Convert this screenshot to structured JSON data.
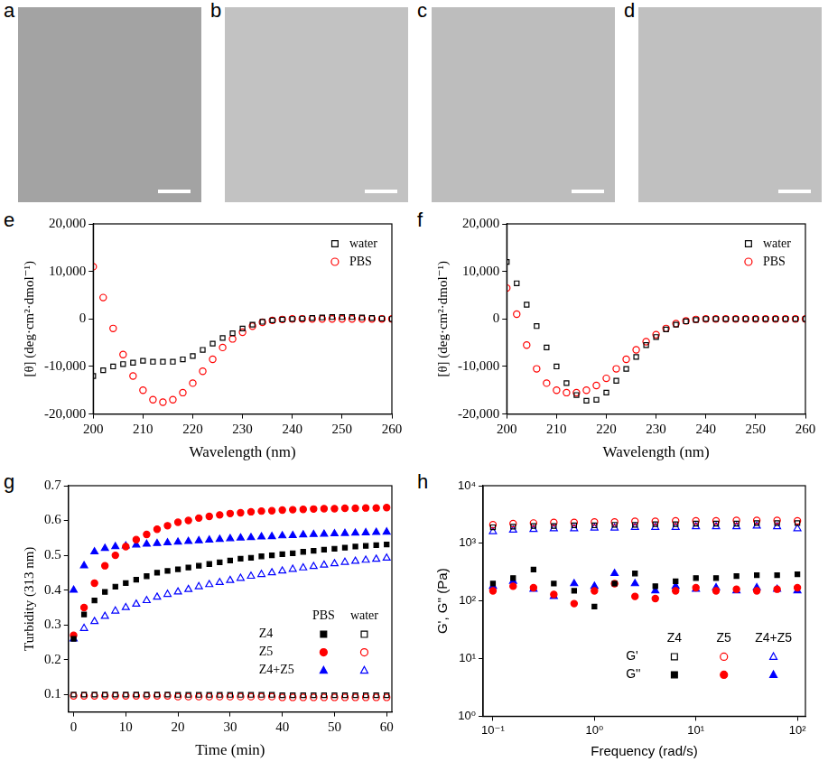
{
  "image_panels": [
    {
      "panel": "a"
    },
    {
      "panel": "b"
    },
    {
      "panel": "c"
    },
    {
      "panel": "d"
    }
  ],
  "chart_data": [
    {
      "panel": "e",
      "type": "scatter",
      "x_label": "Wavelength (nm)",
      "y_label": "[θ] (deg·cm²·dmol⁻¹)",
      "x": [
        200,
        202,
        204,
        206,
        208,
        210,
        212,
        214,
        216,
        218,
        220,
        222,
        224,
        226,
        228,
        230,
        232,
        234,
        236,
        238,
        240,
        242,
        244,
        246,
        248,
        250,
        252,
        254,
        256,
        258,
        260
      ],
      "xlim": [
        200,
        260
      ],
      "xticks": [
        200,
        210,
        220,
        230,
        240,
        250,
        260
      ],
      "ylim": [
        -20000,
        20000
      ],
      "yticks": [
        {
          "value": -20000,
          "label": "-20,000"
        },
        {
          "value": -10000,
          "label": "-10,000"
        },
        0,
        {
          "value": 10000,
          "label": "10,000"
        },
        {
          "value": 20000,
          "label": "20,000"
        }
      ],
      "grid": false,
      "legend": "upper right",
      "series": [
        {
          "name": "water",
          "color": "#000000",
          "marker": "square-open",
          "values": [
            -12000,
            -10800,
            -10000,
            -9500,
            -9200,
            -8800,
            -9000,
            -9000,
            -9000,
            -8500,
            -7800,
            -6500,
            -5200,
            -4000,
            -3000,
            -2000,
            -1200,
            -600,
            -300,
            -100,
            0,
            100,
            200,
            300,
            400,
            400,
            400,
            300,
            200,
            100,
            0
          ]
        },
        {
          "name": "PBS",
          "color": "#ff0000",
          "marker": "circle-open",
          "values": [
            11000,
            4500,
            -2000,
            -7500,
            -12000,
            -15000,
            -17000,
            -17500,
            -17000,
            -15500,
            -13500,
            -11000,
            -8500,
            -6000,
            -4200,
            -2800,
            -1500,
            -700,
            -300,
            -100,
            0,
            0,
            0,
            0,
            0,
            0,
            0,
            0,
            0,
            0,
            0
          ]
        }
      ]
    },
    {
      "panel": "f",
      "type": "scatter",
      "x_label": "Wavelength (nm)",
      "y_label": "[θ] (deg·cm²·dmol⁻¹)",
      "x": [
        200,
        202,
        204,
        206,
        208,
        210,
        212,
        214,
        216,
        218,
        220,
        222,
        224,
        226,
        228,
        230,
        232,
        234,
        236,
        238,
        240,
        242,
        244,
        246,
        248,
        250,
        252,
        254,
        256,
        258,
        260
      ],
      "xlim": [
        200,
        260
      ],
      "xticks": [
        200,
        210,
        220,
        230,
        240,
        250,
        260
      ],
      "ylim": [
        -20000,
        20000
      ],
      "yticks": [
        {
          "value": -20000,
          "label": "-20,000"
        },
        {
          "value": -10000,
          "label": "-10,000"
        },
        0,
        {
          "value": 10000,
          "label": "10,000"
        },
        {
          "value": 20000,
          "label": "20,000"
        }
      ],
      "grid": false,
      "legend": "upper right",
      "series": [
        {
          "name": "water",
          "color": "#000000",
          "marker": "square-open",
          "values": [
            12000,
            7500,
            3000,
            -1500,
            -6000,
            -10000,
            -13500,
            -16000,
            -17200,
            -17000,
            -15500,
            -13000,
            -10500,
            -8000,
            -5500,
            -3800,
            -2200,
            -1200,
            -500,
            -200,
            0,
            0,
            0,
            0,
            0,
            0,
            0,
            0,
            0,
            0,
            0
          ]
        },
        {
          "name": "PBS",
          "color": "#ff0000",
          "marker": "circle-open",
          "values": [
            6500,
            1000,
            -5500,
            -10500,
            -13500,
            -15000,
            -15500,
            -15500,
            -15000,
            -14000,
            -12500,
            -10500,
            -8500,
            -6500,
            -4800,
            -3300,
            -2000,
            -1000,
            -400,
            -100,
            0,
            0,
            0,
            0,
            0,
            0,
            0,
            0,
            0,
            0,
            0
          ]
        }
      ]
    },
    {
      "panel": "g",
      "type": "scatter",
      "x_label": "Time (min)",
      "y_label": "Turbidity (313 nm)",
      "x": [
        0,
        2,
        4,
        6,
        8,
        10,
        12,
        14,
        16,
        18,
        20,
        22,
        24,
        26,
        28,
        30,
        32,
        34,
        36,
        38,
        40,
        42,
        44,
        46,
        48,
        50,
        52,
        54,
        56,
        58,
        60
      ],
      "xlim": [
        -1,
        61
      ],
      "xticks": [
        0,
        10,
        20,
        30,
        40,
        50,
        60
      ],
      "ylim": [
        0.05,
        0.7
      ],
      "yticks": [
        0.1,
        0.2,
        0.3,
        0.4,
        0.5,
        0.6,
        0.7
      ],
      "grid": false,
      "legend": "lower right",
      "series": [
        {
          "name": "Z4",
          "group": "PBS",
          "color": "#000000",
          "marker": "square",
          "values": [
            0.26,
            0.33,
            0.37,
            0.395,
            0.41,
            0.42,
            0.43,
            0.44,
            0.45,
            0.455,
            0.46,
            0.465,
            0.47,
            0.475,
            0.48,
            0.485,
            0.49,
            0.493,
            0.497,
            0.5,
            0.503,
            0.506,
            0.51,
            0.513,
            0.516,
            0.519,
            0.522,
            0.525,
            0.527,
            0.529,
            0.531
          ]
        },
        {
          "name": "Z5",
          "group": "PBS",
          "color": "#ff0000",
          "marker": "circle",
          "values": [
            0.27,
            0.35,
            0.42,
            0.47,
            0.5,
            0.525,
            0.545,
            0.56,
            0.575,
            0.585,
            0.595,
            0.6,
            0.607,
            0.612,
            0.616,
            0.62,
            0.622,
            0.625,
            0.627,
            0.628,
            0.63,
            0.631,
            0.632,
            0.633,
            0.634,
            0.634,
            0.635,
            0.635,
            0.636,
            0.636,
            0.637
          ]
        },
        {
          "name": "Z4+Z5",
          "group": "PBS",
          "color": "#0000ff",
          "marker": "triangle",
          "values": [
            0.4,
            0.47,
            0.51,
            0.52,
            0.525,
            0.527,
            0.53,
            0.532,
            0.534,
            0.536,
            0.538,
            0.54,
            0.542,
            0.544,
            0.546,
            0.548,
            0.55,
            0.551,
            0.553,
            0.554,
            0.556,
            0.557,
            0.559,
            0.56,
            0.561,
            0.562,
            0.563,
            0.564,
            0.565,
            0.566,
            0.567
          ]
        },
        {
          "name": "Z4",
          "group": "water",
          "color": "#000000",
          "marker": "square-open",
          "values": [
            0.1,
            0.1,
            0.1,
            0.1,
            0.1,
            0.1,
            0.1,
            0.1,
            0.1,
            0.1,
            0.099,
            0.099,
            0.099,
            0.099,
            0.099,
            0.099,
            0.099,
            0.099,
            0.099,
            0.099,
            0.098,
            0.098,
            0.098,
            0.098,
            0.098,
            0.098,
            0.098,
            0.098,
            0.098,
            0.098,
            0.098
          ]
        },
        {
          "name": "Z5",
          "group": "water",
          "color": "#ff0000",
          "marker": "circle-open",
          "values": [
            0.096,
            0.096,
            0.096,
            0.096,
            0.096,
            0.096,
            0.096,
            0.096,
            0.096,
            0.096,
            0.094,
            0.094,
            0.094,
            0.094,
            0.094,
            0.094,
            0.094,
            0.094,
            0.094,
            0.094,
            0.092,
            0.092,
            0.092,
            0.092,
            0.092,
            0.092,
            0.092,
            0.092,
            0.092,
            0.092,
            0.092
          ]
        },
        {
          "name": "Z4+Z5",
          "group": "water",
          "color": "#0000ff",
          "marker": "triangle-open",
          "values": [
            0.26,
            0.29,
            0.31,
            0.325,
            0.34,
            0.35,
            0.36,
            0.37,
            0.38,
            0.388,
            0.395,
            0.402,
            0.41,
            0.416,
            0.422,
            0.428,
            0.434,
            0.44,
            0.445,
            0.45,
            0.455,
            0.46,
            0.464,
            0.468,
            0.472,
            0.476,
            0.48,
            0.483,
            0.486,
            0.489,
            0.492
          ]
        }
      ]
    },
    {
      "panel": "h",
      "type": "scatter",
      "x_label": "Frequency (rad/s)",
      "y_label": "G', G'' (Pa)",
      "log": true,
      "x": [
        0.1,
        0.158,
        0.251,
        0.398,
        0.631,
        1,
        1.58,
        2.51,
        3.98,
        6.31,
        10,
        15.8,
        25.1,
        39.8,
        63.1,
        100
      ],
      "xlim": [
        0.08,
        120
      ],
      "xticks": [
        {
          "value": 0.1,
          "label": "10⁻¹"
        },
        {
          "value": 1,
          "label": "10⁰"
        },
        {
          "value": 10,
          "label": "10¹"
        },
        {
          "value": 100,
          "label": "10²"
        }
      ],
      "ylim": [
        1,
        10000
      ],
      "yticks": [
        {
          "value": 1,
          "label": "10⁰"
        },
        {
          "value": 10,
          "label": "10¹"
        },
        {
          "value": 100,
          "label": "10²"
        },
        {
          "value": 1000,
          "label": "10³"
        },
        {
          "value": 10000,
          "label": "10⁴"
        }
      ],
      "grid": false,
      "legend": "lower right",
      "series": [
        {
          "name": "G'",
          "group": "Z4",
          "color": "#000000",
          "marker": "square-open",
          "values": [
            1900,
            1950,
            2000,
            2000,
            2050,
            2050,
            2100,
            2100,
            2150,
            2150,
            2200,
            2200,
            2200,
            2250,
            2250,
            2250
          ]
        },
        {
          "name": "G'",
          "group": "Z5",
          "color": "#ff0000",
          "marker": "circle-open",
          "values": [
            2100,
            2200,
            2250,
            2300,
            2300,
            2350,
            2350,
            2400,
            2400,
            2450,
            2450,
            2450,
            2500,
            2500,
            2500,
            2450
          ]
        },
        {
          "name": "G'",
          "group": "Z4+Z5",
          "color": "#0000ff",
          "marker": "triangle-open",
          "values": [
            1600,
            1700,
            1750,
            1800,
            1800,
            1850,
            1850,
            1900,
            1900,
            1900,
            1950,
            1950,
            1950,
            2000,
            1950,
            1800
          ]
        },
        {
          "name": "G''",
          "group": "Z4",
          "color": "#000000",
          "marker": "square",
          "values": [
            200,
            250,
            350,
            200,
            150,
            80,
            200,
            300,
            180,
            220,
            250,
            250,
            270,
            280,
            280,
            290
          ]
        },
        {
          "name": "G''",
          "group": "Z5",
          "color": "#ff0000",
          "marker": "circle",
          "values": [
            150,
            180,
            170,
            130,
            90,
            150,
            200,
            120,
            110,
            150,
            170,
            150,
            160,
            150,
            160,
            170
          ]
        },
        {
          "name": "G''",
          "group": "Z4+Z5",
          "color": "#0000ff",
          "marker": "triangle",
          "values": [
            180,
            220,
            160,
            120,
            200,
            180,
            300,
            200,
            150,
            180,
            160,
            170,
            150,
            170,
            160,
            150
          ]
        }
      ]
    }
  ]
}
